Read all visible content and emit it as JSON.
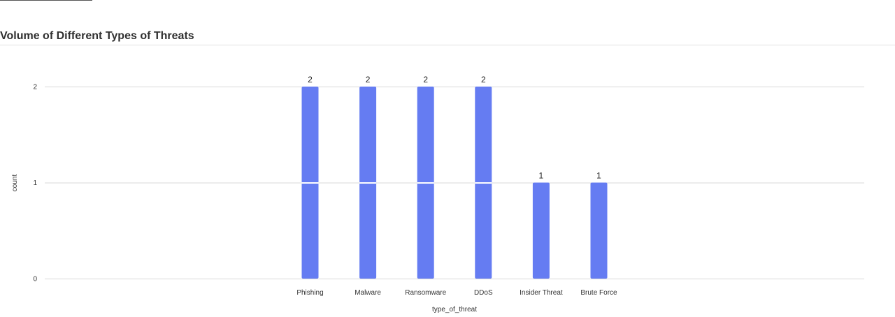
{
  "panel": {
    "title": "Volume of Different Types of Threats"
  },
  "colors": {
    "bar": "#657cf2",
    "grid": "#d9d9d9",
    "axis": "#cccccc"
  },
  "chart_data": {
    "type": "bar",
    "title": "Volume of Different Types of Threats",
    "xlabel": "type_of_threat",
    "ylabel": "count",
    "categories": [
      "Phishing",
      "Malware",
      "Ransomware",
      "DDoS",
      "Insider Threat",
      "Brute Force"
    ],
    "values": [
      2,
      2,
      2,
      2,
      1,
      1
    ],
    "yticks": [
      0,
      1,
      2
    ],
    "ylim": [
      0,
      2
    ],
    "grid": true,
    "legend": "none",
    "data_labels": true
  }
}
